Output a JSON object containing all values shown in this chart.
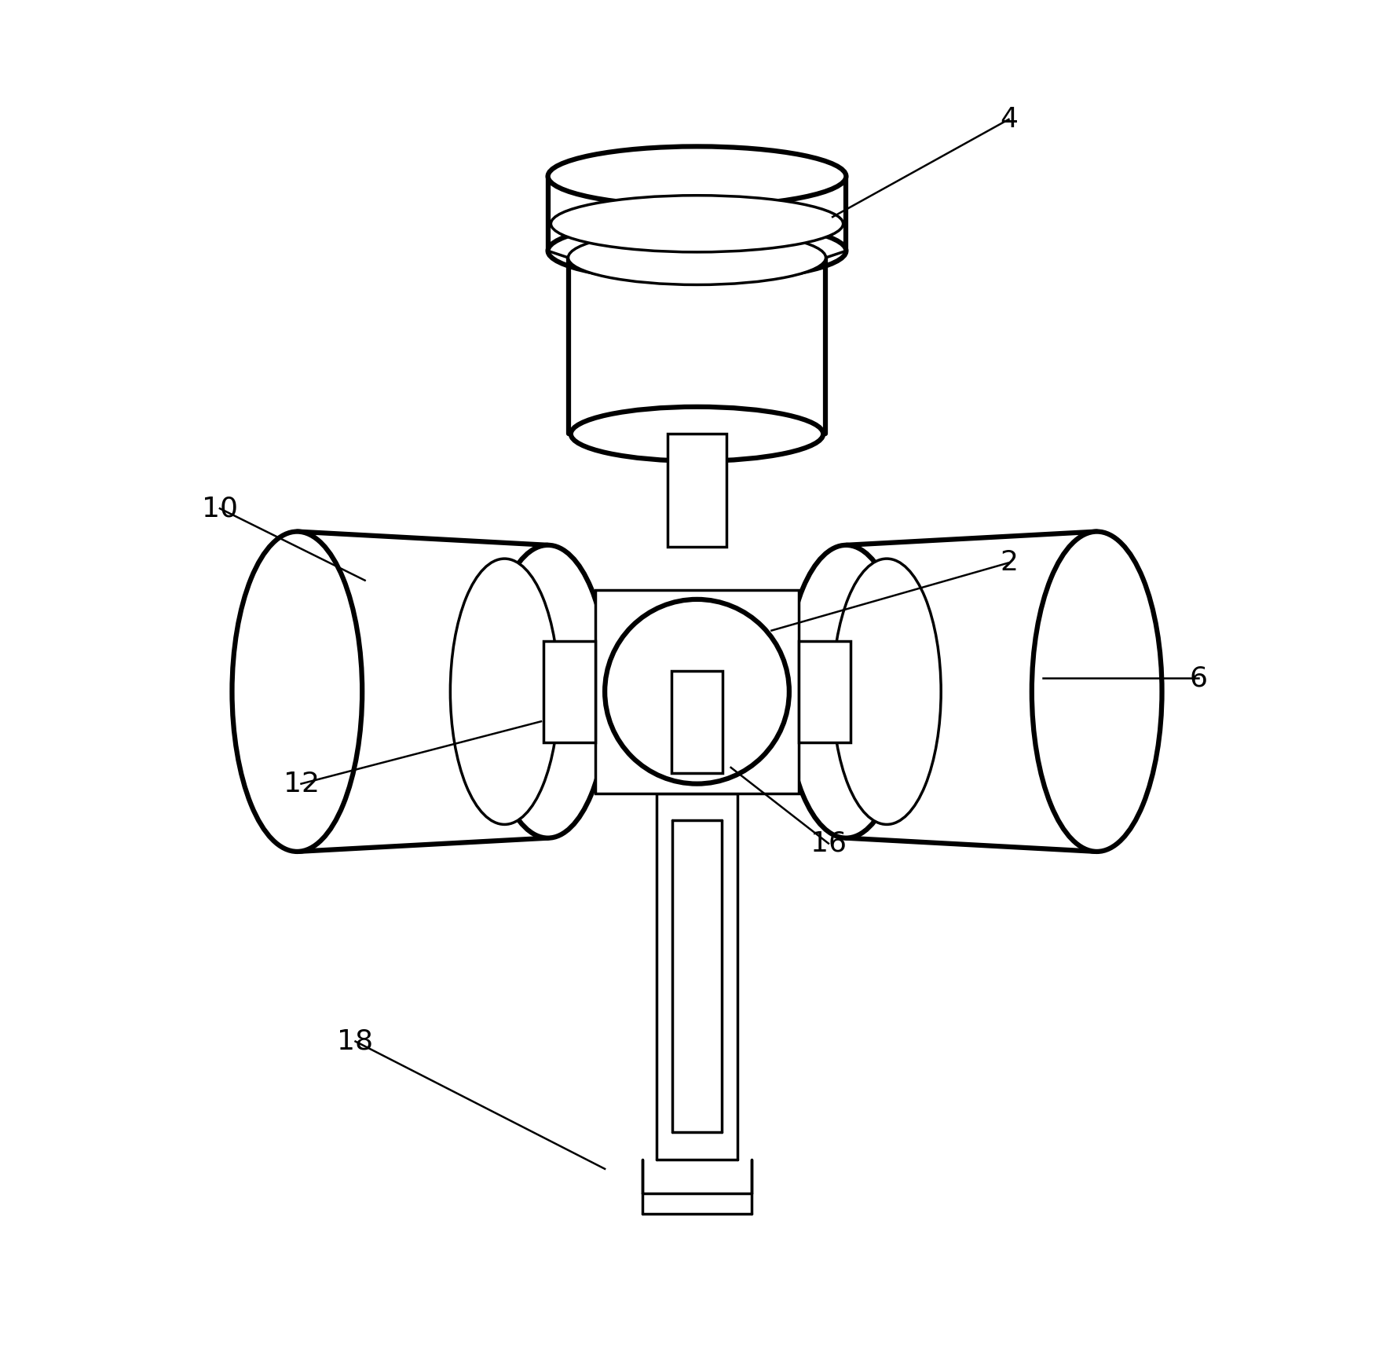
{
  "background_color": "#ffffff",
  "line_color": "#000000",
  "lw_thick": 4.5,
  "lw_thin": 2.5,
  "fig_width": 17.75,
  "fig_height": 17.26,
  "label_fontsize": 26
}
